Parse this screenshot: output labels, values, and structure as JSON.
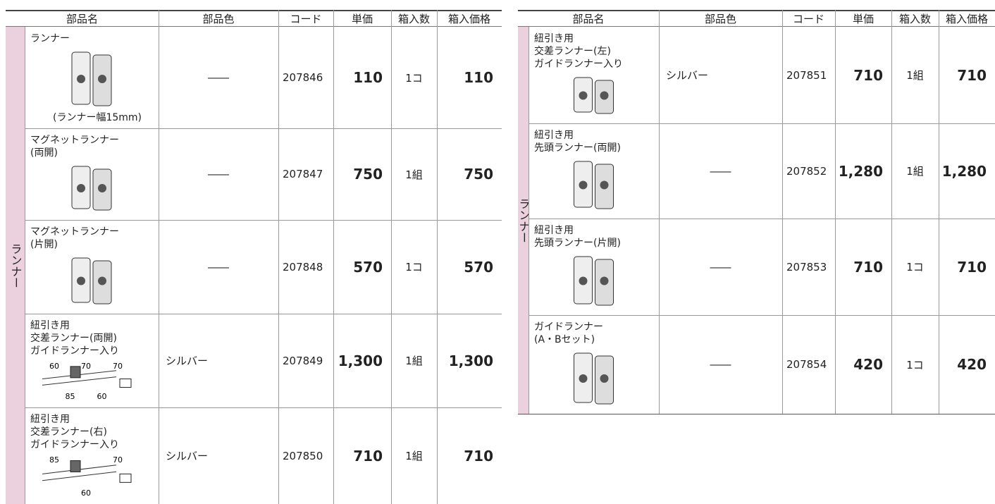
{
  "header": [
    "部品名",
    "部品色",
    "コード",
    "単価",
    "箱入数",
    "箱入価格"
  ],
  "left": {
    "group": "ランナー",
    "rows": [
      {
        "name": [
          "ランナー"
        ],
        "note": "(ランナー幅15mm)",
        "color": "――",
        "code": "207846",
        "price": "110",
        "unit": "1コ",
        "box_price": "110"
      },
      {
        "name": [
          "マグネットランナー",
          "(両開)"
        ],
        "color": "――",
        "code": "207847",
        "price": "750",
        "unit": "1組",
        "box_price": "750"
      },
      {
        "name": [
          "マグネットランナー",
          "(片開)"
        ],
        "color": "――",
        "code": "207848",
        "price": "570",
        "unit": "1コ",
        "box_price": "570"
      },
      {
        "name": [
          "紐引き用",
          "交差ランナー(両開)",
          "ガイドランナー入り"
        ],
        "figure_labels": [
          "60",
          "85",
          "70",
          "60",
          "70"
        ],
        "color": "シルバー",
        "code": "207849",
        "price": "1,300",
        "unit": "1組",
        "box_price": "1,300"
      },
      {
        "name": [
          "紐引き用",
          "交差ランナー(右)",
          "ガイドランナー入り"
        ],
        "figure_labels": [
          "85",
          "60",
          "70"
        ],
        "color": "シルバー",
        "code": "207850",
        "price": "710",
        "unit": "1組",
        "box_price": "710"
      }
    ]
  },
  "right": {
    "group": "ランナー",
    "rows": [
      {
        "name": [
          "紐引き用",
          "交差ランナー(左)",
          "ガイドランナー入り"
        ],
        "color": "シルバー",
        "code": "207851",
        "price": "710",
        "unit": "1組",
        "box_price": "710"
      },
      {
        "name": [
          "紐引き用",
          "先頭ランナー(両開)"
        ],
        "color": "――",
        "code": "207852",
        "price": "1,280",
        "unit": "1組",
        "box_price": "1,280"
      },
      {
        "name": [
          "紐引き用",
          "先頭ランナー(片開)"
        ],
        "color": "――",
        "code": "207853",
        "price": "710",
        "unit": "1コ",
        "box_price": "710"
      },
      {
        "name": [
          "ガイドランナー",
          "(A・Bセット)"
        ],
        "color": "――",
        "code": "207854",
        "price": "420",
        "unit": "1コ",
        "box_price": "420"
      }
    ]
  }
}
